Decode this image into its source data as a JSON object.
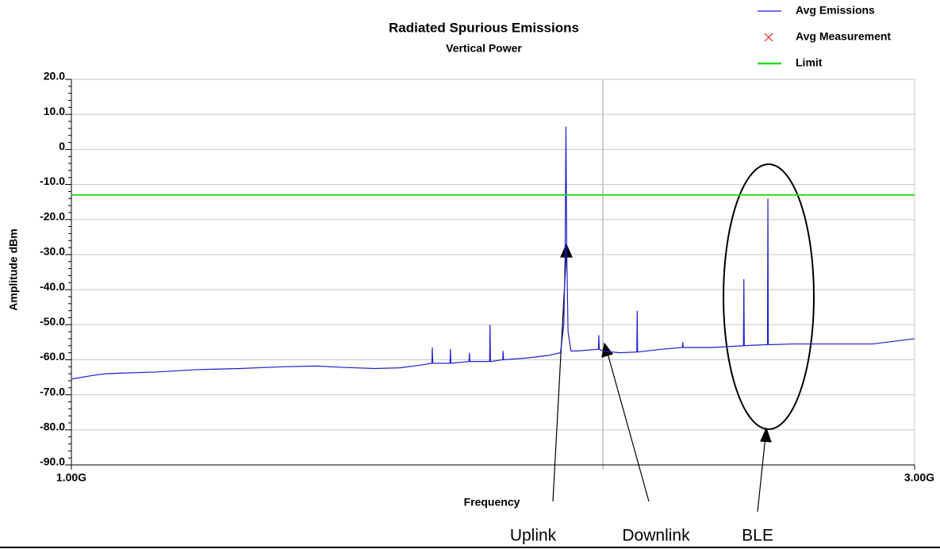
{
  "chart_data": {
    "type": "line",
    "title": "Radiated Spurious Emissions",
    "subtitle": "Vertical Power",
    "x_label": "Frequency",
    "y_label": "Amplitude dBm",
    "xlim": [
      1,
      3
    ],
    "xticks": [
      {
        "value": 1,
        "label": "1.00G"
      },
      {
        "value": 3,
        "label": "3.00G"
      }
    ],
    "ylim": [
      -90,
      20
    ],
    "yticks": [
      {
        "value": -90,
        "label": "-90.0"
      },
      {
        "value": -80,
        "label": "-80.0"
      },
      {
        "value": -70,
        "label": "-70.0"
      },
      {
        "value": -60,
        "label": "-60.0"
      },
      {
        "value": -50,
        "label": "-50.0"
      },
      {
        "value": -40,
        "label": "-40.0"
      },
      {
        "value": -30,
        "label": "-30.0"
      },
      {
        "value": -20,
        "label": "-20.0"
      },
      {
        "value": -10,
        "label": "-10.0"
      },
      0,
      {
        "value": 10,
        "label": "10.0"
      },
      {
        "value": 20,
        "label": "20.0"
      }
    ],
    "grid": true,
    "legend": "top-right",
    "series": [
      {
        "name": "Avg Emissions",
        "color": "#1f1fcc",
        "marker": "line",
        "x": [
          1.0,
          1.05,
          1.08,
          1.12,
          1.2,
          1.3,
          1.4,
          1.5,
          1.58,
          1.65,
          1.72,
          1.78,
          1.83,
          1.855,
          1.856,
          1.857,
          1.898,
          1.899,
          1.9,
          1.943,
          1.944,
          1.945,
          1.992,
          1.993,
          1.994,
          2.023,
          2.024,
          2.025,
          2.08,
          2.13,
          2.16,
          2.168,
          2.171,
          2.173,
          2.175,
          2.178,
          2.185,
          2.2,
          2.25,
          2.251,
          2.252,
          2.261,
          2.3,
          2.341,
          2.342,
          2.343,
          2.4,
          2.449,
          2.45,
          2.451,
          2.52,
          2.594,
          2.595,
          2.596,
          2.63,
          2.651,
          2.652,
          2.653,
          2.712,
          2.8,
          2.9,
          3.0
        ],
        "values": [
          -65.5,
          -64.5,
          -64,
          -63.8,
          -63.5,
          -62.8,
          -62.5,
          -62,
          -61.8,
          -62.2,
          -62.5,
          -62.3,
          -61.5,
          -61,
          -56.5,
          -61,
          -61,
          -57,
          -61,
          -60.5,
          -58,
          -60.5,
          -60.5,
          -50,
          -60.5,
          -60,
          -57.5,
          -60,
          -59.5,
          -58.8,
          -58,
          -50,
          -30,
          6.5,
          -30,
          -52,
          -57.5,
          -57.5,
          -57,
          -53,
          -57,
          -57.5,
          -58,
          -57.8,
          -46,
          -57.8,
          -57,
          -56.5,
          -55,
          -56.5,
          -56.5,
          -56,
          -37,
          -56,
          -55.8,
          -55.7,
          -14,
          -55.7,
          -55.5,
          -55.5,
          -55.5,
          -54
        ]
      },
      {
        "name": "Avg Measurement",
        "color": "#e02020",
        "marker": "x",
        "x": [],
        "values": []
      },
      {
        "name": "Limit",
        "color": "#22dd22",
        "marker": "line",
        "x": [
          1,
          3
        ],
        "values": [
          -13,
          -13
        ]
      }
    ],
    "annotations": [
      "Uplink",
      "Downlink",
      "BLE"
    ]
  }
}
